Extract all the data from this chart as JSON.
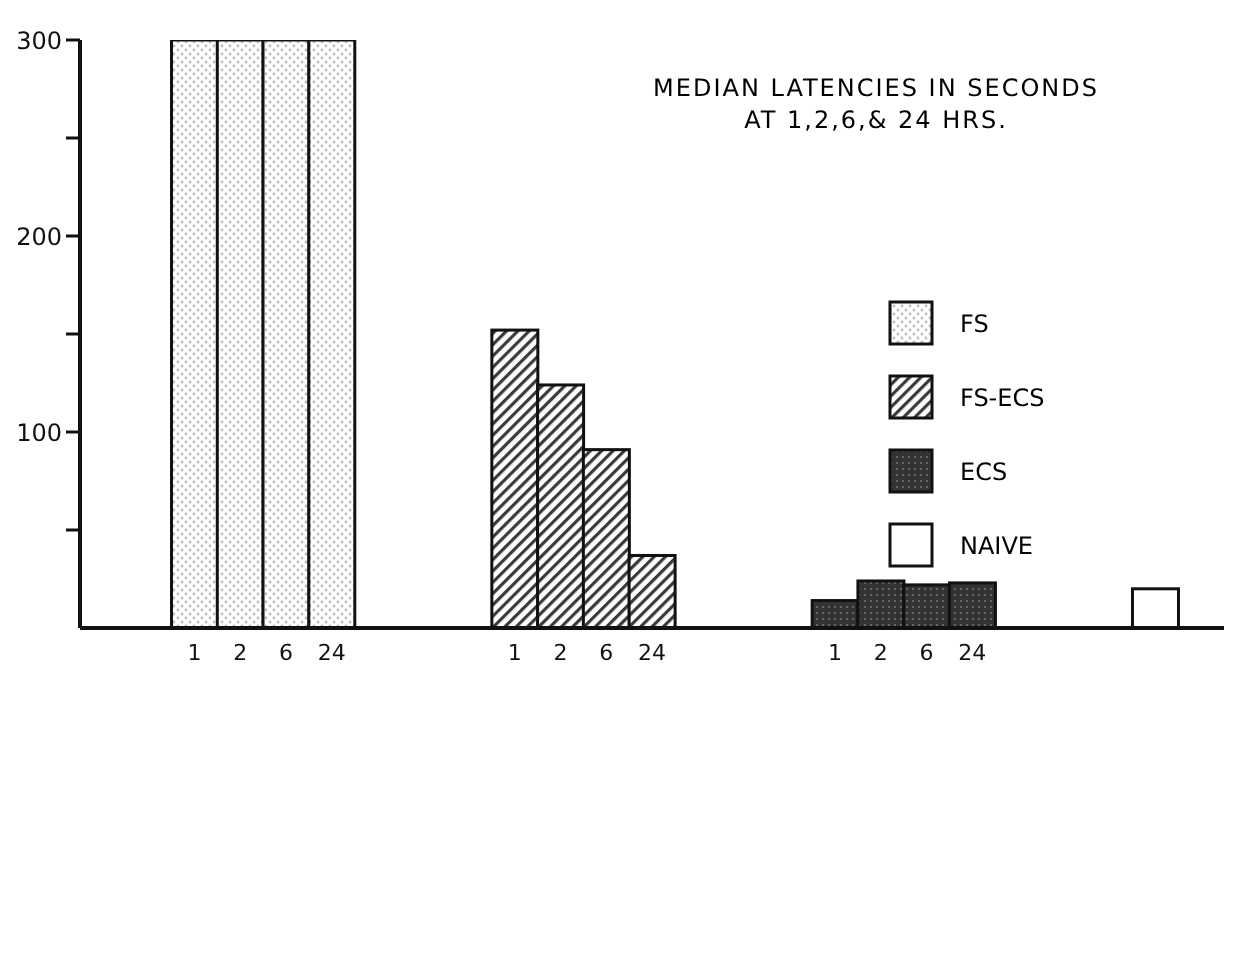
{
  "chart_data": {
    "type": "bar",
    "title": "MEDIAN LATENCIES IN SECONDS",
    "subtitle": "AT 1,2,6,& 24 HRS.",
    "categories": [
      null,
      null,
      "1",
      "2",
      "6",
      "24",
      null,
      null,
      null,
      "1",
      "2",
      "6",
      "24",
      null,
      null,
      null,
      "1",
      "2",
      "6",
      "24",
      null,
      null,
      null,
      null,
      null
    ],
    "stacked": true,
    "series": [
      {
        "name": "FS",
        "color": "#bdbdbd",
        "values": [
          null,
          null,
          300,
          300,
          300,
          300,
          null,
          null,
          null,
          null,
          null,
          null,
          null,
          null,
          null,
          null,
          null,
          null,
          null,
          null,
          null,
          null,
          null,
          null,
          null
        ]
      },
      {
        "name": "FS-ECS",
        "color": "#3a3a3a",
        "values": [
          null,
          null,
          null,
          null,
          null,
          null,
          null,
          null,
          null,
          152,
          124,
          91,
          37,
          null,
          null,
          null,
          null,
          null,
          null,
          null,
          null,
          null,
          null,
          null,
          null
        ]
      },
      {
        "name": "ECS",
        "color": "#333333",
        "values": [
          null,
          null,
          null,
          null,
          null,
          null,
          null,
          null,
          null,
          null,
          null,
          null,
          null,
          null,
          null,
          null,
          14,
          24,
          22,
          23,
          null,
          null,
          null,
          null,
          null
        ]
      },
      {
        "name": "NAIVE",
        "color": "#ffffff",
        "values": [
          null,
          null,
          null,
          null,
          null,
          null,
          null,
          null,
          null,
          null,
          null,
          null,
          null,
          null,
          null,
          null,
          null,
          null,
          null,
          null,
          null,
          null,
          null,
          20,
          null
        ]
      }
    ],
    "ylim": [
      0,
      300
    ],
    "yticks": [
      {
        "value": 50,
        "label": null
      },
      100,
      {
        "value": 150,
        "label": null
      },
      200,
      {
        "value": 250,
        "label": null
      },
      300
    ],
    "legend": "right"
  }
}
